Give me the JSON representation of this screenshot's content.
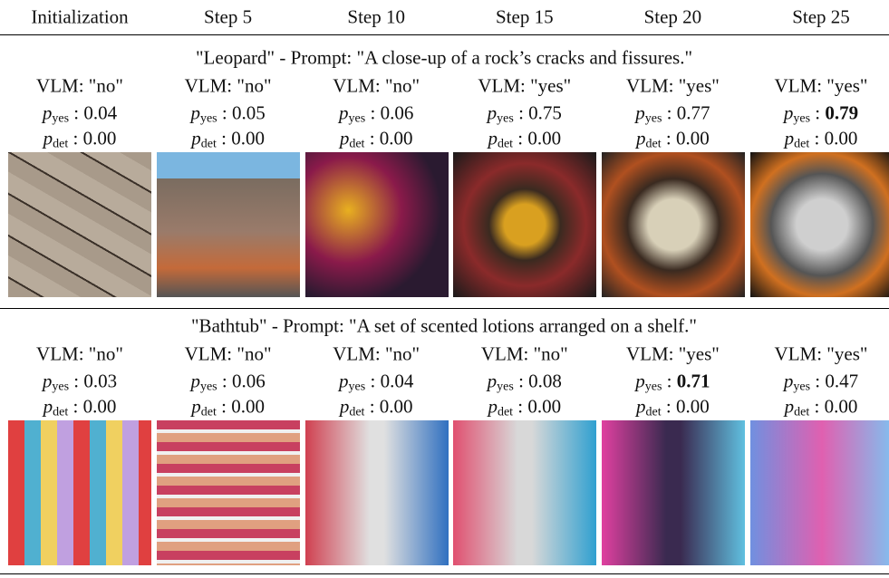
{
  "header": [
    "Initialization",
    "Step 5",
    "Step 10",
    "Step 15",
    "Step 20",
    "Step 25"
  ],
  "symbol": "p",
  "yes_sub": "yes",
  "det_sub": "det",
  "separator": ":",
  "sections": [
    {
      "title": "\"Leopard\" - Prompt: \"A close-up of a rock’s cracks and fissures.\"",
      "vlm": [
        "VLM: \"no\"",
        "VLM: \"no\"",
        "VLM: \"no\"",
        "VLM: \"yes\"",
        "VLM: \"yes\"",
        "VLM: \"yes\""
      ],
      "p_yes": [
        "0.04",
        "0.05",
        "0.06",
        "0.75",
        "0.77",
        "0.79"
      ],
      "p_yes_best": 5,
      "p_det": [
        "0.00",
        "0.00",
        "0.00",
        "0.00",
        "0.00",
        "0.00"
      ]
    },
    {
      "title": "\"Bathtub\" - Prompt: \"A set of scented lotions arranged on a shelf.\"",
      "vlm": [
        "VLM: \"no\"",
        "VLM: \"no\"",
        "VLM: \"no\"",
        "VLM: \"no\"",
        "VLM: \"yes\"",
        "VLM: \"yes\""
      ],
      "p_yes": [
        "0.03",
        "0.06",
        "0.04",
        "0.08",
        "0.71",
        "0.47"
      ],
      "p_yes_best": 4,
      "p_det": [
        "0.00",
        "0.00",
        "0.00",
        "0.00",
        "0.00",
        "0.00"
      ]
    }
  ]
}
